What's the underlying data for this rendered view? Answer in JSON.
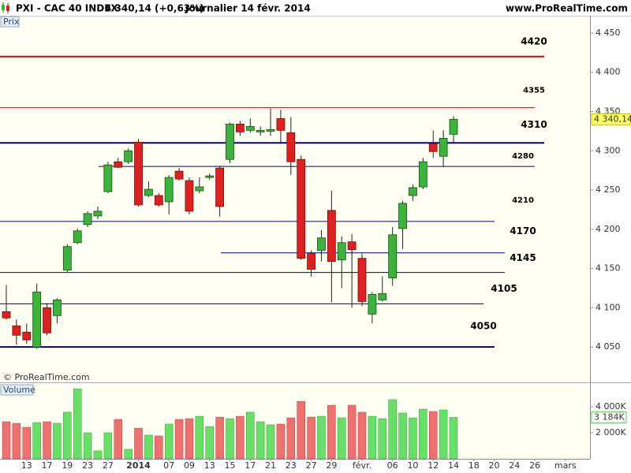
{
  "header": {
    "symbol": "PXI - CAC 40 INDEX",
    "quote": "4 340,14 (+0,63%)",
    "period": "Journalier  14 févr. 2014",
    "site": "www.ProRealTime.com"
  },
  "chart_data": {
    "type": "candlestick",
    "panel_label": "Prix",
    "watermark": "© ProRealTime.com",
    "categories": [
      null,
      null,
      "13",
      null,
      "17",
      null,
      "19",
      null,
      "23",
      null,
      "27",
      null,
      null,
      "2014",
      null,
      null,
      "07",
      null,
      "09",
      null,
      "13",
      null,
      "15",
      null,
      "17",
      null,
      "21",
      null,
      "23",
      null,
      "27",
      null,
      "29",
      null,
      null,
      "févr.",
      null,
      null,
      "06",
      null,
      "10",
      null,
      "12",
      null,
      "14",
      null,
      "18",
      null,
      "20",
      null,
      "24",
      null,
      "26",
      null,
      null,
      "mars",
      null,
      null
    ],
    "open": [
      4095,
      4077,
      4069,
      4050,
      4100,
      4090,
      4148,
      4183,
      4206,
      4217,
      4248,
      4286,
      4286,
      4311,
      4243,
      4243,
      4235,
      4274,
      4262,
      4249,
      4266,
      4278,
      4289,
      4334,
      4326,
      4324,
      4325,
      4341,
      4323,
      4289,
      4169,
      4173,
      4224,
      4161,
      4184,
      4163,
      4092,
      4110,
      4138,
      4201,
      4243,
      4254,
      4309,
      4293,
      4321,
      null,
      null,
      null,
      null,
      null,
      null,
      null,
      null,
      null,
      null,
      null,
      null,
      null
    ],
    "high": [
      4129,
      4085,
      4080,
      4131,
      4106,
      4112,
      4181,
      4201,
      4223,
      4229,
      4286,
      4291,
      4303,
      4315,
      4261,
      4246,
      4269,
      4278,
      4266,
      4266,
      4271,
      4281,
      4336,
      4338,
      4341,
      4331,
      4354,
      4352,
      4343,
      4294,
      4173,
      4199,
      4249,
      4191,
      4194,
      4169,
      4120,
      4140,
      4203,
      4236,
      4257,
      4291,
      4326,
      4326,
      4344,
      null,
      null,
      null,
      null,
      null,
      null,
      null,
      null,
      null,
      null,
      null,
      null,
      null
    ],
    "low": [
      4085,
      4053,
      4054,
      4048,
      4065,
      4080,
      4145,
      4181,
      4203,
      4213,
      4246,
      4278,
      4283,
      4229,
      4241,
      4229,
      4219,
      4262,
      4219,
      4246,
      4263,
      4216,
      4284,
      4319,
      4323,
      4319,
      4319,
      4311,
      4269,
      4161,
      4140,
      4159,
      4107,
      4125,
      4100,
      4102,
      4080,
      4108,
      4128,
      4175,
      4236,
      4251,
      4291,
      4279,
      4309,
      null,
      null,
      null,
      null,
      null,
      null,
      null,
      null,
      null,
      null,
      null,
      null,
      null
    ],
    "close": [
      4087,
      4065,
      4059,
      4120,
      4068,
      4110,
      4178,
      4198,
      4220,
      4223,
      4282,
      4279,
      4300,
      4231,
      4251,
      4231,
      4266,
      4264,
      4223,
      4254,
      4268,
      4229,
      4334,
      4324,
      4331,
      4326,
      4327,
      4326,
      4286,
      4163,
      4149,
      4189,
      4159,
      4183,
      4174,
      4108,
      4117,
      4118,
      4193,
      4233,
      4253,
      4286,
      4299,
      4316,
      4340.14,
      null,
      null,
      null,
      null,
      null,
      null,
      null,
      null,
      null,
      null,
      null,
      null,
      null
    ],
    "close_label": "4 340,14",
    "up_color": "#3cb43c",
    "down_color": "#e02020",
    "ylim": [
      4007,
      4472
    ],
    "yticks": [
      {
        "value": 4050,
        "label": "4 050"
      },
      {
        "value": 4100,
        "label": "4 100"
      },
      {
        "value": 4150,
        "label": "4 150"
      },
      {
        "value": 4200,
        "label": "4 200"
      },
      {
        "value": 4250,
        "label": "4 250"
      },
      {
        "value": 4300,
        "label": "4 300"
      },
      {
        "value": 4350,
        "label": "4 350"
      },
      {
        "value": 4400,
        "label": "4 400"
      },
      {
        "value": 4450,
        "label": "4 450"
      }
    ],
    "levels": [
      {
        "value": 4420,
        "color": "#e00000"
      },
      {
        "value": 4355,
        "color": "#d02020"
      },
      {
        "value": 4310,
        "color": "#000080"
      },
      {
        "value": 4280,
        "color": "#000080"
      },
      {
        "value": 4210,
        "color": "#000080"
      },
      {
        "value": 4170,
        "color": "#000080"
      },
      {
        "value": 4145,
        "color": "#000080"
      },
      {
        "value": 4105,
        "color": "#000080"
      },
      {
        "value": 4050,
        "color": "#000080"
      }
    ],
    "volume": {
      "label": "Volume",
      "up_color": "#66e066",
      "down_color": "#f07070",
      "values": [
        2850,
        2730,
        2420,
        2790,
        2850,
        2730,
        3580,
        5390,
        2000,
        610,
        2000,
        3030,
        730,
        2360,
        1820,
        1760,
        2670,
        3030,
        3090,
        3270,
        2480,
        3210,
        3090,
        3270,
        3580,
        2850,
        2610,
        2670,
        3150,
        4420,
        3210,
        3270,
        4120,
        3150,
        4120,
        3580,
        3270,
        3090,
        4550,
        3520,
        3150,
        3820,
        3640,
        3760,
        3184,
        null,
        null,
        null,
        null,
        null,
        null,
        null,
        null,
        null,
        null,
        null,
        null,
        null
      ],
      "last_label": "3 184K",
      "ylim": [
        0,
        5760
      ],
      "yticks": [
        {
          "value": 2000,
          "label": "2 000K"
        },
        {
          "value": 4000,
          "label": "4 000K"
        }
      ]
    }
  }
}
